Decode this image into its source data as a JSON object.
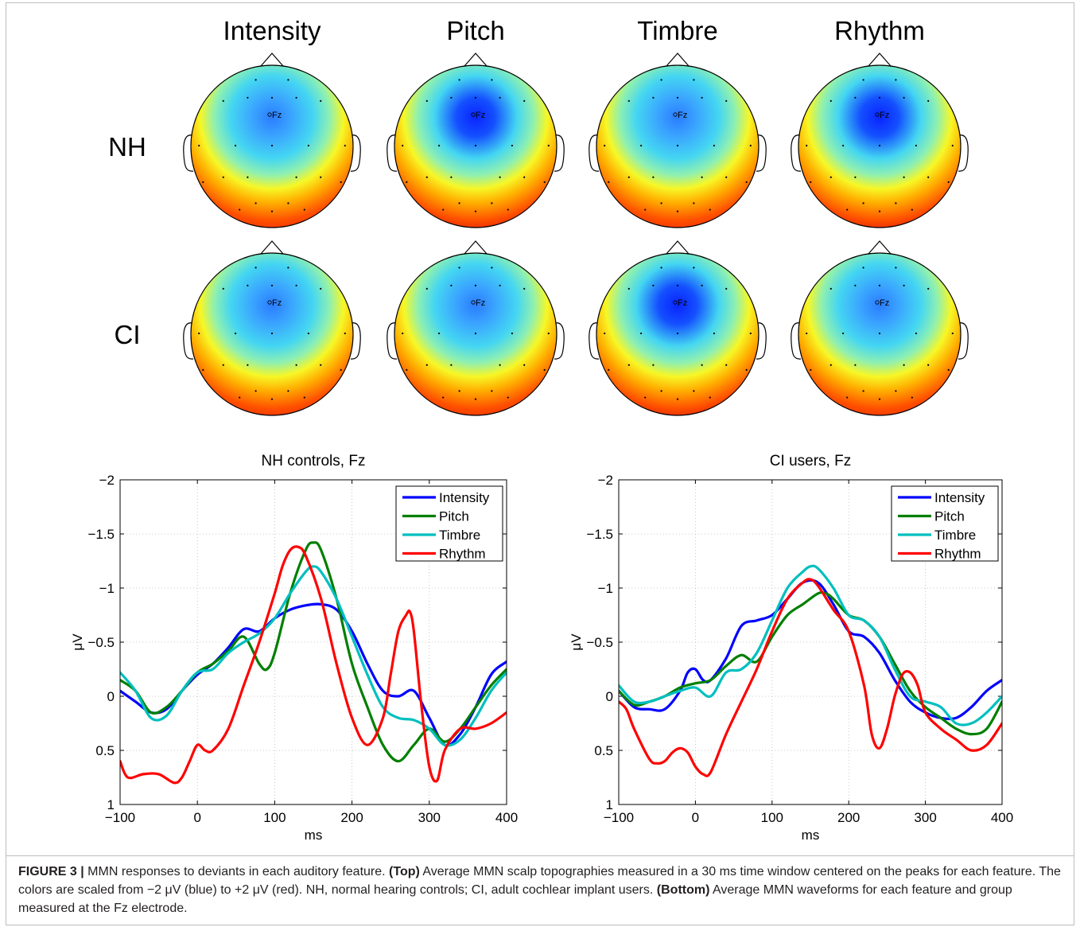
{
  "topo": {
    "features": [
      "Intensity",
      "Pitch",
      "Timbre",
      "Rhythm"
    ],
    "groups": [
      "NH",
      "CI"
    ],
    "electrode_label": "Fz",
    "maps": {
      "NH": [
        {
          "blue_strength": 0.55,
          "red_strength": 0.75,
          "vfront": 0.0
        },
        {
          "blue_strength": 0.95,
          "red_strength": 1.0,
          "vfront": 0.15
        },
        {
          "blue_strength": 0.7,
          "red_strength": 0.9,
          "vfront": 0.0
        },
        {
          "blue_strength": 0.85,
          "red_strength": 0.95,
          "vfront": 0.05
        }
      ],
      "CI": [
        {
          "blue_strength": 0.7,
          "red_strength": 0.8,
          "vfront": 0.35
        },
        {
          "blue_strength": 0.6,
          "red_strength": 0.8,
          "vfront": 0.0
        },
        {
          "blue_strength": 0.9,
          "red_strength": 0.95,
          "vfront": 0.0
        },
        {
          "blue_strength": 0.6,
          "red_strength": 0.75,
          "vfront": 0.0
        }
      ]
    }
  },
  "chart_data": [
    {
      "type": "line",
      "title": "NH controls, Fz",
      "xlabel": "ms",
      "ylabel": "μV",
      "xlim": [
        -100,
        400
      ],
      "ylim": [
        1,
        -2
      ],
      "y_reversed": true,
      "grid": true,
      "legend": "top-right",
      "xticks": [
        "−100",
        "0",
        "100",
        "200",
        "300",
        "400"
      ],
      "yticks": [
        "−2",
        "−1.5",
        "−1",
        "−0.5",
        "0",
        "0.5",
        "1"
      ],
      "series": [
        {
          "name": "Intensity",
          "color": "#0000ff",
          "x": [
            -100,
            -80,
            -60,
            -40,
            -20,
            0,
            20,
            40,
            60,
            80,
            100,
            120,
            140,
            160,
            180,
            200,
            220,
            240,
            260,
            280,
            300,
            320,
            340,
            360,
            380,
            400
          ],
          "y": [
            -0.05,
            0.05,
            0.15,
            0.12,
            -0.05,
            -0.2,
            -0.3,
            -0.45,
            -0.62,
            -0.6,
            -0.72,
            -0.8,
            -0.84,
            -0.85,
            -0.8,
            -0.6,
            -0.3,
            -0.05,
            0.0,
            -0.05,
            0.2,
            0.45,
            0.35,
            0.1,
            -0.2,
            -0.32
          ]
        },
        {
          "name": "Pitch",
          "color": "#007f00",
          "x": [
            -100,
            -80,
            -60,
            -40,
            -20,
            0,
            20,
            40,
            60,
            80,
            90,
            100,
            120,
            140,
            150,
            160,
            180,
            200,
            220,
            240,
            260,
            280,
            300,
            320,
            340,
            360,
            380,
            400
          ],
          "y": [
            -0.15,
            -0.05,
            0.15,
            0.1,
            -0.05,
            -0.22,
            -0.3,
            -0.42,
            -0.55,
            -0.3,
            -0.25,
            -0.4,
            -0.95,
            -1.35,
            -1.42,
            -1.35,
            -0.9,
            -0.3,
            0.1,
            0.45,
            0.6,
            0.45,
            0.3,
            0.42,
            0.3,
            0.1,
            -0.1,
            -0.25
          ]
        },
        {
          "name": "Timbre",
          "color": "#00bfbf",
          "x": [
            -100,
            -80,
            -60,
            -40,
            -20,
            0,
            20,
            40,
            60,
            80,
            100,
            120,
            140,
            150,
            160,
            180,
            200,
            220,
            240,
            260,
            280,
            300,
            320,
            340,
            360,
            380,
            400
          ],
          "y": [
            -0.22,
            -0.05,
            0.2,
            0.18,
            -0.05,
            -0.22,
            -0.25,
            -0.4,
            -0.5,
            -0.58,
            -0.72,
            -0.95,
            -1.15,
            -1.2,
            -1.15,
            -0.9,
            -0.55,
            -0.2,
            0.1,
            0.2,
            0.22,
            0.3,
            0.45,
            0.4,
            0.2,
            -0.05,
            -0.22
          ]
        },
        {
          "name": "Rhythm",
          "color": "#ff0000",
          "x": [
            -100,
            -90,
            -70,
            -50,
            -30,
            -20,
            -10,
            0,
            10,
            20,
            40,
            60,
            80,
            100,
            110,
            120,
            130,
            140,
            160,
            180,
            200,
            220,
            240,
            250,
            260,
            270,
            275,
            280,
            290,
            300,
            310,
            320,
            340,
            360,
            380,
            400
          ],
          "y": [
            0.6,
            0.75,
            0.72,
            0.72,
            0.8,
            0.75,
            0.6,
            0.45,
            0.5,
            0.5,
            0.3,
            -0.1,
            -0.5,
            -0.95,
            -1.2,
            -1.35,
            -1.38,
            -1.3,
            -0.9,
            -0.3,
            0.2,
            0.45,
            0.2,
            -0.2,
            -0.6,
            -0.75,
            -0.78,
            -0.6,
            0.1,
            0.65,
            0.78,
            0.5,
            0.3,
            0.3,
            0.25,
            0.15
          ]
        }
      ]
    },
    {
      "type": "line",
      "title": "CI users, Fz",
      "xlabel": "ms",
      "ylabel": "μV",
      "xlim": [
        -100,
        400
      ],
      "ylim": [
        1,
        -2
      ],
      "y_reversed": true,
      "grid": true,
      "legend": "top-right",
      "xticks": [
        "−100",
        "0",
        "100",
        "200",
        "300",
        "400"
      ],
      "yticks": [
        "−2",
        "−1.5",
        "−1",
        "−0.5",
        "0",
        "0.5",
        "1"
      ],
      "series": [
        {
          "name": "Intensity",
          "color": "#0000ff",
          "x": [
            -100,
            -80,
            -60,
            -40,
            -20,
            -10,
            0,
            10,
            20,
            40,
            60,
            80,
            100,
            120,
            140,
            160,
            180,
            200,
            220,
            240,
            260,
            280,
            300,
            320,
            340,
            360,
            380,
            400
          ],
          "y": [
            -0.05,
            0.1,
            0.12,
            0.12,
            -0.05,
            -0.22,
            -0.25,
            -0.15,
            -0.15,
            -0.35,
            -0.65,
            -0.7,
            -0.75,
            -0.9,
            -1.05,
            -1.05,
            -0.85,
            -0.6,
            -0.55,
            -0.4,
            -0.15,
            0.05,
            0.15,
            0.2,
            0.2,
            0.1,
            -0.05,
            -0.15
          ]
        },
        {
          "name": "Pitch",
          "color": "#007f00",
          "x": [
            -100,
            -80,
            -60,
            -40,
            -20,
            0,
            20,
            40,
            60,
            80,
            100,
            120,
            140,
            160,
            170,
            180,
            200,
            220,
            240,
            260,
            280,
            300,
            320,
            340,
            360,
            380,
            400
          ],
          "y": [
            -0.05,
            0.08,
            0.05,
            0.0,
            -0.08,
            -0.12,
            -0.15,
            -0.28,
            -0.38,
            -0.32,
            -0.55,
            -0.75,
            -0.85,
            -0.95,
            -0.95,
            -0.9,
            -0.75,
            -0.7,
            -0.55,
            -0.3,
            -0.05,
            0.1,
            0.2,
            0.3,
            0.35,
            0.3,
            0.05
          ]
        },
        {
          "name": "Timbre",
          "color": "#00bfbf",
          "x": [
            -100,
            -80,
            -60,
            -40,
            -20,
            0,
            20,
            40,
            60,
            80,
            100,
            120,
            140,
            150,
            160,
            180,
            200,
            220,
            240,
            260,
            280,
            300,
            320,
            340,
            360,
            380,
            400
          ],
          "y": [
            -0.1,
            0.05,
            0.05,
            0.0,
            -0.05,
            -0.08,
            0.0,
            -0.22,
            -0.25,
            -0.4,
            -0.7,
            -1.0,
            -1.15,
            -1.2,
            -1.18,
            -1.0,
            -0.75,
            -0.7,
            -0.55,
            -0.25,
            0.0,
            0.05,
            0.1,
            0.25,
            0.25,
            0.15,
            0.0
          ]
        },
        {
          "name": "Rhythm",
          "color": "#ff0000",
          "x": [
            -100,
            -90,
            -80,
            -60,
            -50,
            -40,
            -30,
            -20,
            -10,
            0,
            10,
            20,
            40,
            60,
            80,
            100,
            120,
            140,
            150,
            160,
            180,
            200,
            220,
            230,
            240,
            250,
            260,
            270,
            280,
            290,
            300,
            320,
            340,
            360,
            380,
            400
          ],
          "y": [
            0.05,
            0.12,
            0.3,
            0.58,
            0.62,
            0.6,
            0.52,
            0.48,
            0.52,
            0.65,
            0.72,
            0.7,
            0.35,
            0.05,
            -0.25,
            -0.6,
            -0.9,
            -1.05,
            -1.08,
            -1.02,
            -0.8,
            -0.6,
            -0.1,
            0.35,
            0.48,
            0.3,
            0.0,
            -0.2,
            -0.22,
            -0.1,
            0.15,
            0.3,
            0.4,
            0.5,
            0.45,
            0.25
          ]
        }
      ]
    }
  ],
  "caption": {
    "label": "FIGURE 3 |",
    "part1": " MMN responses to deviants in each auditory feature. ",
    "top_label": "(Top)",
    "part2": " Average MMN scalp topographies measured in a 30 ms time window centered on the peaks for each feature. The colors are scaled from −2 μV (blue) to +2 μV (red). NH, normal hearing controls; CI, adult cochlear implant users. ",
    "bottom_label": "(Bottom)",
    "part3": " Average MMN waveforms for each feature and group measured at the Fz electrode."
  }
}
